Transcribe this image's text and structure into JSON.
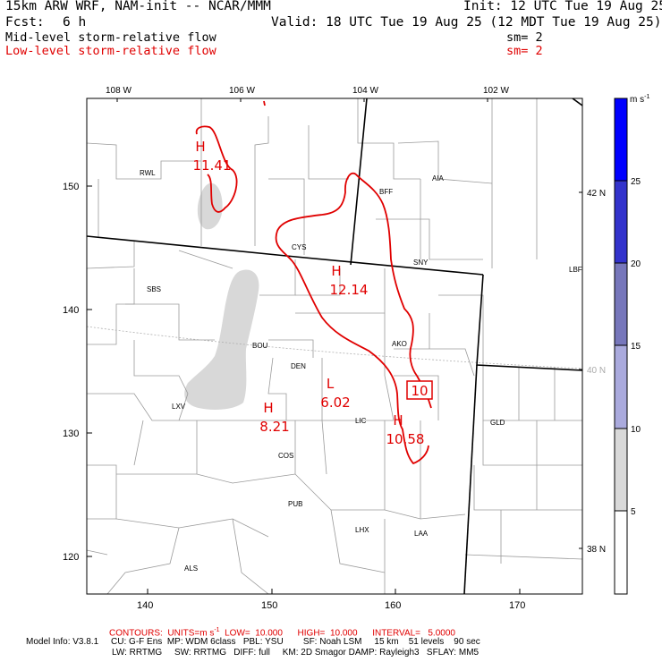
{
  "header": {
    "model_line": "15km ARW WRF, NAM-init -- NCAR/MMM",
    "init_line": "Init: 12 UTC Tue 19 Aug 25",
    "fcst_label": "Fcst:",
    "fcst_value": "6 h",
    "valid_line": "Valid: 18 UTC Tue 19 Aug 25 (12 MDT Tue 19 Aug 25)",
    "mid_level_label": "Mid-level storm-relative flow",
    "mid_level_sm": "sm= 2",
    "low_level_label": "Low-level storm-relative flow",
    "low_level_sm": "sm= 2"
  },
  "map": {
    "lon_labels": [
      "108 W",
      "106 W",
      "104 W",
      "102 W"
    ],
    "lat_labels": [
      "42 N",
      "40 N",
      "38 N"
    ],
    "x_ticks": [
      "140",
      "150",
      "160",
      "170"
    ],
    "y_ticks": [
      "150",
      "140",
      "130",
      "120"
    ],
    "stations": [
      "RWL",
      "BFF",
      "AIA",
      "CYS",
      "SNY",
      "LBF",
      "SBS",
      "BOU",
      "AKO",
      "DEN",
      "LXV",
      "LIC",
      "GLD",
      "COS",
      "PUB",
      "LHX",
      "LAA",
      "ALS"
    ],
    "contour_labels": [
      {
        "type": "H",
        "value": "11.41"
      },
      {
        "type": "H",
        "value": "12.14"
      },
      {
        "type": "L",
        "value": "6.02"
      },
      {
        "type": "H",
        "value": "8.21"
      },
      {
        "type": "H",
        "value": "10.58"
      }
    ],
    "boxed_label": "10"
  },
  "colorbar": {
    "units": "m s",
    "units_exp": "-1",
    "labels": [
      "25",
      "20",
      "15",
      "10",
      "5"
    ],
    "colors": [
      "#0000ff",
      "#3333cc",
      "#7777bb",
      "#aaaadd",
      "#d9d9d9",
      "#ffffff"
    ]
  },
  "footer": {
    "contours": "CONTOURS:  UNITS=m s",
    "contours_exp": "-1",
    "contours_rest": "  LOW=  10.000      HIGH=  10.000      INTERVAL=   5.0000",
    "model_info_1": "Model Info: V3.8.1     CU: G-F Ens  MP: WDM 6class   PBL: YSU        SF: Noah LSM     15 km    51 levels    90 sec",
    "model_info_2": "LW: RRTMG     SW: RRTMG   DIFF: full     KM: 2D Smagor DAMP: Rayleigh3   SFLAY: MM5"
  }
}
